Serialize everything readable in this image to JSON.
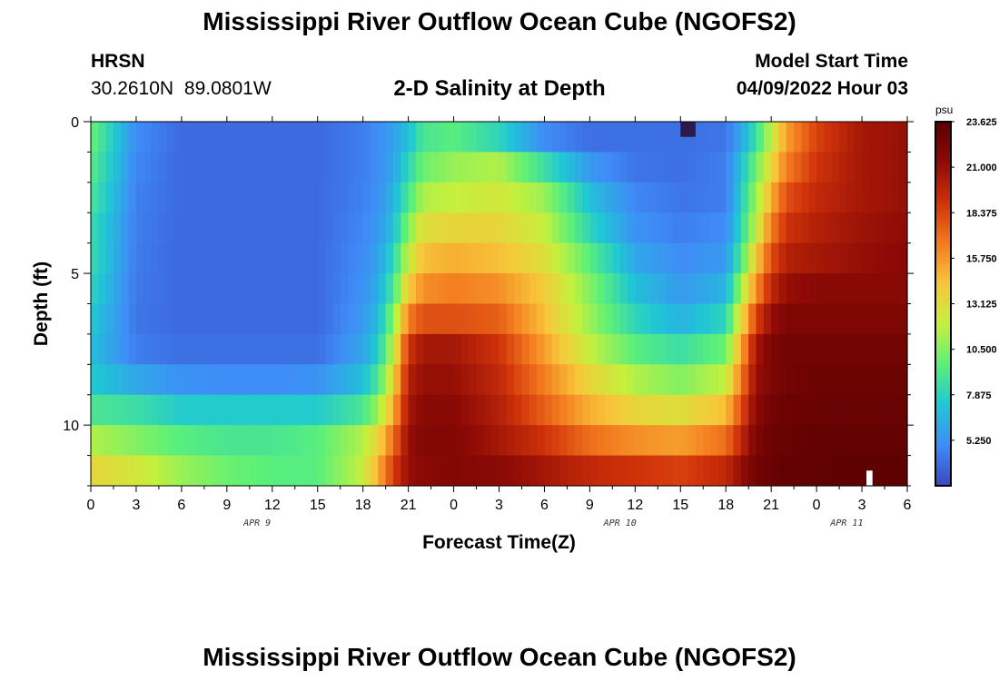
{
  "header": {
    "title": "Mississippi River Outflow Ocean Cube (NGOFS2)",
    "station_code": "HRSN",
    "station_coords": "30.2610N  89.0801W",
    "subtitle": "2-D Salinity at Depth",
    "model_start_label": "Model Start Time",
    "model_start_value": "04/09/2022 Hour 03"
  },
  "footer": {
    "title": "Mississippi River Outflow Ocean Cube (NGOFS2)"
  },
  "chart_data": {
    "type": "heatmap",
    "xlabel": "Forecast Time(Z)",
    "ylabel": "Depth (ft)",
    "xlim": [
      0,
      54
    ],
    "ylim": [
      12,
      0
    ],
    "x_tick_labels": [
      "0",
      "3",
      "6",
      "9",
      "12",
      "15",
      "18",
      "21",
      "0",
      "3",
      "6",
      "9",
      "12",
      "15",
      "18",
      "21",
      "0",
      "3",
      "6"
    ],
    "y_tick_labels": [
      "0",
      "5",
      "10"
    ],
    "y_tick_values": [
      0,
      5,
      10
    ],
    "date_labels": [
      {
        "label": "APR 9",
        "x": 11
      },
      {
        "label": "APR 10",
        "x": 35
      },
      {
        "label": "APR 11",
        "x": 50
      }
    ],
    "colorbar": {
      "unit": "psu",
      "min": 2.625,
      "max": 23.625,
      "tick_labels": [
        "23.625",
        "21.000",
        "18.375",
        "15.750",
        "13.125",
        "10.500",
        "7.875",
        "5.250"
      ],
      "tick_values": [
        23.625,
        21.0,
        18.375,
        15.75,
        13.125,
        10.5,
        7.875,
        5.25
      ],
      "colors": [
        "#3b47c4",
        "#3f8cf7",
        "#1fc7d5",
        "#5bf07a",
        "#c5f03c",
        "#f8c63a",
        "#f37a1f",
        "#d0320a",
        "#8e0a06",
        "#5a0000"
      ]
    },
    "depth_layers": [
      0,
      1,
      2,
      3,
      4,
      5,
      6,
      7,
      8,
      9,
      10,
      11
    ],
    "time_hours": [
      0,
      3,
      6,
      9,
      12,
      15,
      18,
      19,
      20,
      21,
      22,
      24,
      27,
      30,
      33,
      36,
      39,
      42,
      43,
      44,
      45,
      46,
      48,
      51,
      54
    ],
    "salinity_psu": [
      [
        10.0,
        5.0,
        3.8,
        3.8,
        3.8,
        3.8,
        4.5,
        5.0,
        5.8,
        7.0,
        9.0,
        9.5,
        8.0,
        5.0,
        4.0,
        4.0,
        4.0,
        4.2,
        6.0,
        8.5,
        12.0,
        15.5,
        18.5,
        20.5,
        21.0
      ],
      [
        9.5,
        4.8,
        3.8,
        3.8,
        3.8,
        3.8,
        4.5,
        5.0,
        6.0,
        8.0,
        10.0,
        11.0,
        11.5,
        8.5,
        5.5,
        4.2,
        4.0,
        4.5,
        7.0,
        10.0,
        13.5,
        16.5,
        19.0,
        20.5,
        21.0
      ],
      [
        9.0,
        4.6,
        3.8,
        3.8,
        3.8,
        3.8,
        4.6,
        5.2,
        6.5,
        9.0,
        11.5,
        12.0,
        12.5,
        11.0,
        7.0,
        4.8,
        4.2,
        4.5,
        7.5,
        11.0,
        15.0,
        18.0,
        19.5,
        20.5,
        21.0
      ],
      [
        8.5,
        4.5,
        3.8,
        3.8,
        3.8,
        3.8,
        4.8,
        5.5,
        7.0,
        10.5,
        13.0,
        13.5,
        13.5,
        12.0,
        8.0,
        5.2,
        4.5,
        5.0,
        8.0,
        12.0,
        16.5,
        19.0,
        20.0,
        20.8,
        21.2
      ],
      [
        8.5,
        4.4,
        3.8,
        3.8,
        3.8,
        3.8,
        5.0,
        5.8,
        8.0,
        12.0,
        14.5,
        15.0,
        14.5,
        13.0,
        9.5,
        6.0,
        5.0,
        5.5,
        9.0,
        14.0,
        18.0,
        20.0,
        20.5,
        21.0,
        21.5
      ],
      [
        8.0,
        4.3,
        3.8,
        3.8,
        3.8,
        3.8,
        5.2,
        6.2,
        9.0,
        14.0,
        16.0,
        16.5,
        16.0,
        14.0,
        10.5,
        7.0,
        5.5,
        6.5,
        11.0,
        16.0,
        19.5,
        21.0,
        21.5,
        21.5,
        21.5
      ],
      [
        7.5,
        4.2,
        3.8,
        3.8,
        3.8,
        3.8,
        5.5,
        6.8,
        10.5,
        16.5,
        18.0,
        18.0,
        17.5,
        14.5,
        11.0,
        8.0,
        6.5,
        8.0,
        13.0,
        18.5,
        21.0,
        22.0,
        22.0,
        22.0,
        22.0
      ],
      [
        7.0,
        4.5,
        4.0,
        4.0,
        4.0,
        4.0,
        6.0,
        7.5,
        12.0,
        19.0,
        20.5,
        20.5,
        19.0,
        15.5,
        12.0,
        9.5,
        8.5,
        10.0,
        15.0,
        20.5,
        22.0,
        22.5,
        22.5,
        22.5,
        22.5
      ],
      [
        7.5,
        6.0,
        5.2,
        5.0,
        5.0,
        5.2,
        7.0,
        9.0,
        13.5,
        20.0,
        21.0,
        21.0,
        19.5,
        16.5,
        13.5,
        11.5,
        10.5,
        12.0,
        16.5,
        21.0,
        22.0,
        22.5,
        22.8,
        22.8,
        22.8
      ],
      [
        9.0,
        8.5,
        7.5,
        7.5,
        7.5,
        7.5,
        9.0,
        11.0,
        15.0,
        20.5,
        21.5,
        21.5,
        20.0,
        17.5,
        15.0,
        13.5,
        13.0,
        14.5,
        18.0,
        21.5,
        22.5,
        22.8,
        23.0,
        23.0,
        23.0
      ],
      [
        11.5,
        10.5,
        9.5,
        9.0,
        9.0,
        9.5,
        11.5,
        13.5,
        17.0,
        21.0,
        21.8,
        21.8,
        20.5,
        19.0,
        17.0,
        16.0,
        15.5,
        17.0,
        19.5,
        22.0,
        22.8,
        23.0,
        23.2,
        23.2,
        23.2
      ],
      [
        13.5,
        12.5,
        11.0,
        10.0,
        9.5,
        9.5,
        12.0,
        15.0,
        18.5,
        21.0,
        21.5,
        21.8,
        21.5,
        20.5,
        19.5,
        19.0,
        18.5,
        19.5,
        21.0,
        22.5,
        23.0,
        23.2,
        23.3,
        23.4,
        23.4
      ]
    ],
    "markers": [
      {
        "type": "min-patch",
        "x0": 39,
        "x1": 40,
        "y0": 0,
        "y1": 0.5
      },
      {
        "type": "blank-patch",
        "x0": 51.3,
        "x1": 51.7,
        "y0": 11.5,
        "y1": 12
      }
    ]
  }
}
